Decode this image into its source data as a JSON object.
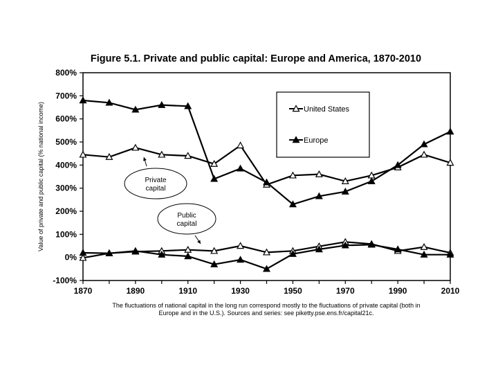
{
  "chart_data": {
    "type": "line",
    "title": "Figure 5.1. Private and public capital: Europe and America, 1870-2010",
    "ylabel": "Value of private and public capital (% national income)",
    "xlabel": "",
    "x": [
      1870,
      1880,
      1890,
      1900,
      1910,
      1920,
      1930,
      1940,
      1950,
      1960,
      1970,
      1980,
      1990,
      2000,
      2010
    ],
    "xticks": [
      1870,
      1890,
      1910,
      1930,
      1950,
      1970,
      1990,
      2010
    ],
    "ylim": [
      -100,
      800
    ],
    "yticks": [
      -100,
      0,
      100,
      200,
      300,
      400,
      500,
      600,
      700,
      800
    ],
    "ytick_labels": [
      "-100%",
      "0%",
      "100%",
      "200%",
      "300%",
      "400%",
      "500%",
      "600%",
      "700%",
      "800%"
    ],
    "grid": false,
    "legend_position": "top-right",
    "legend": [
      {
        "name": "United States",
        "marker": "open-triangle"
      },
      {
        "name": "Europe",
        "marker": "filled-triangle"
      }
    ],
    "series": [
      {
        "name": "United States",
        "group": "private",
        "marker": "open-triangle",
        "values": [
          445,
          435,
          475,
          445,
          440,
          405,
          485,
          315,
          355,
          360,
          330,
          355,
          390,
          445,
          410
        ]
      },
      {
        "name": "Europe",
        "group": "private",
        "marker": "filled-triangle",
        "values": [
          680,
          670,
          640,
          660,
          655,
          340,
          385,
          325,
          230,
          265,
          285,
          330,
          400,
          490,
          545
        ]
      },
      {
        "name": "United States",
        "group": "public",
        "marker": "open-triangle",
        "values": [
          -2,
          18,
          25,
          28,
          33,
          28,
          50,
          22,
          28,
          48,
          67,
          58,
          28,
          45,
          20
        ]
      },
      {
        "name": "Europe",
        "group": "public",
        "marker": "filled-triangle",
        "values": [
          20,
          18,
          28,
          12,
          5,
          -30,
          -10,
          -50,
          15,
          35,
          52,
          55,
          35,
          12,
          12
        ]
      }
    ],
    "annotations": [
      {
        "text": [
          "Private",
          "capital"
        ]
      },
      {
        "text": [
          "Public",
          "capital"
        ]
      }
    ],
    "caption": [
      "The fluctuations of national capital in the long run correspond mostly to the fluctuations of private capital (both in",
      "Europe and in the U.S.). Sources and series: see piketty.pse.ens.fr/capital21c."
    ]
  }
}
